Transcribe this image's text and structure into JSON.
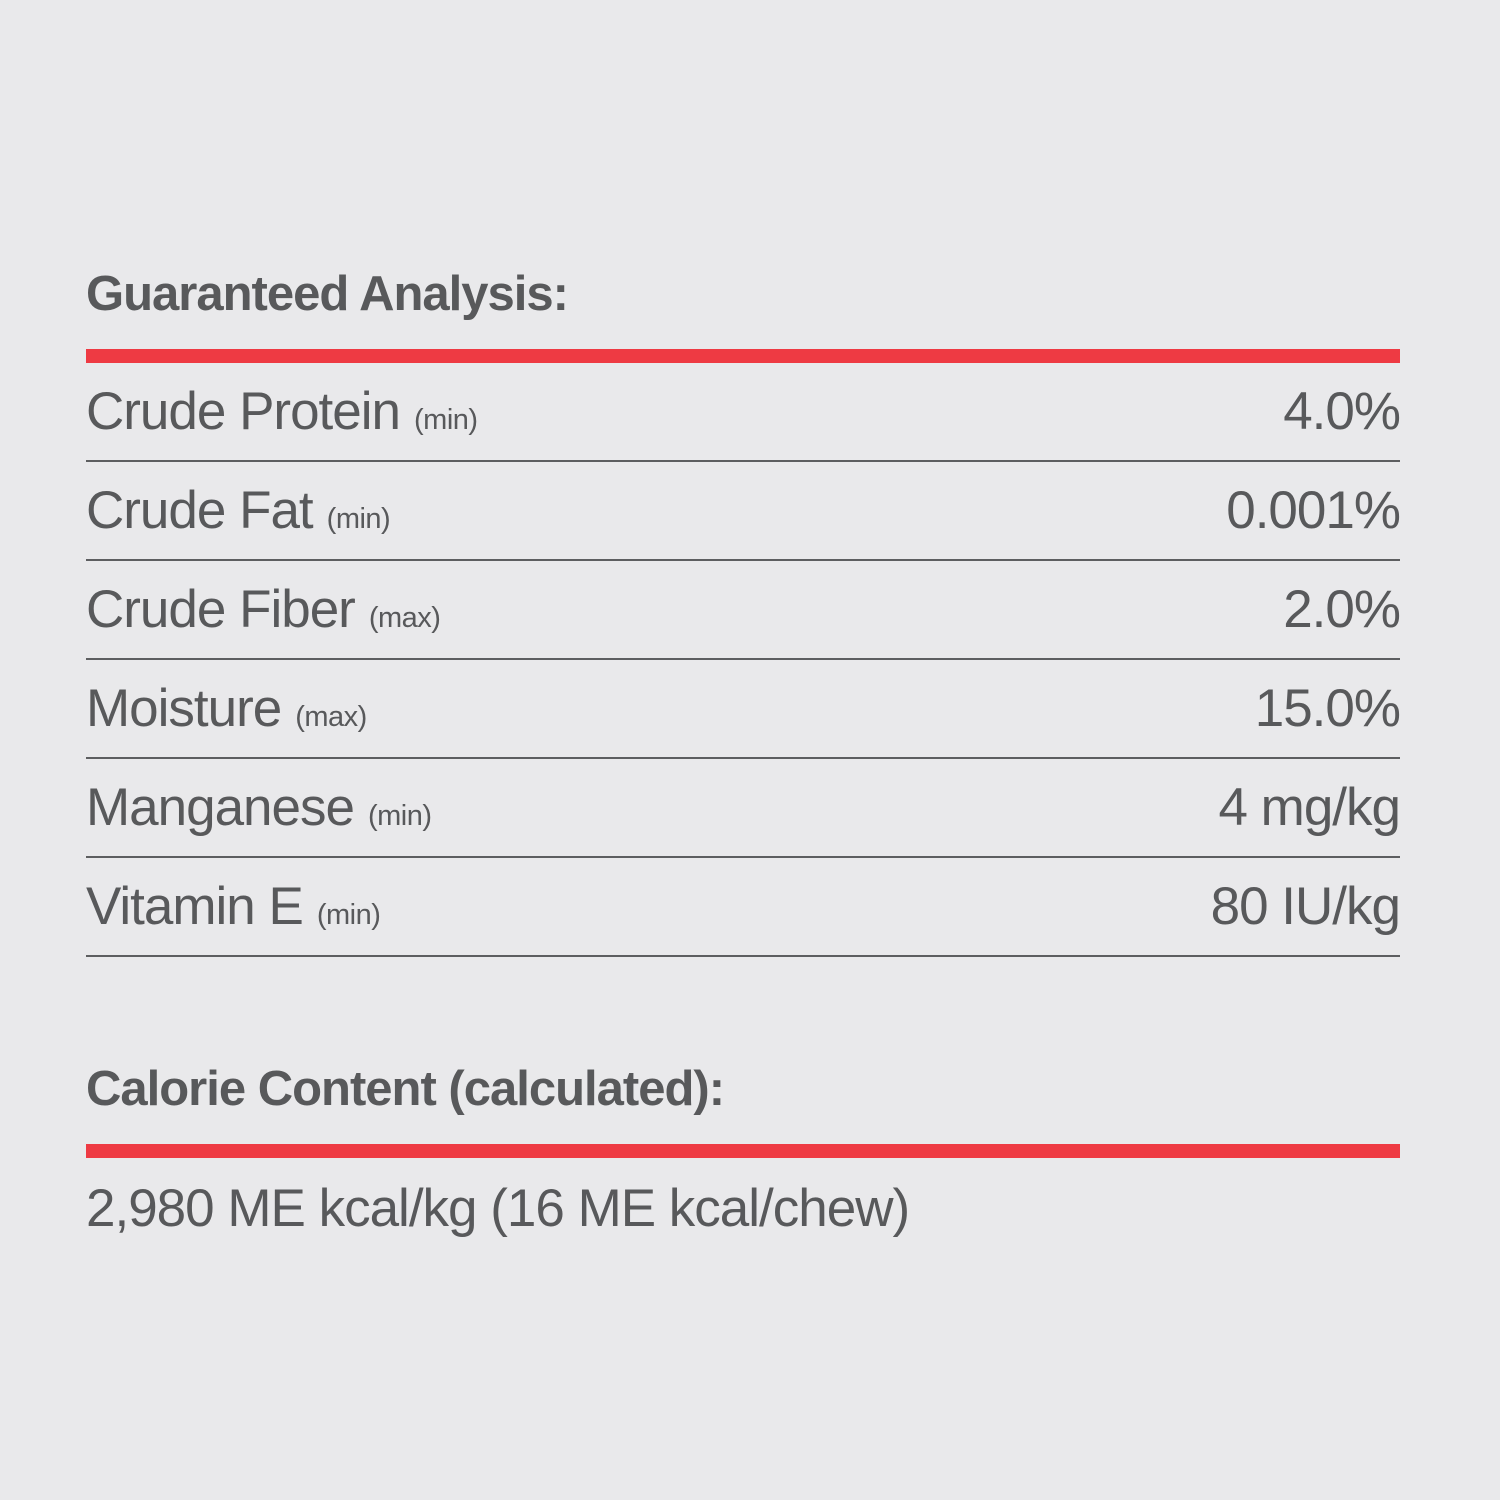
{
  "page": {
    "background_color": "#e9e9eb",
    "text_color": "#58595b",
    "accent_red": "#ee3a43"
  },
  "guaranteed_analysis": {
    "title": "Guaranteed Analysis:",
    "rows": [
      {
        "label": "Crude Protein",
        "qualifier": "(min)",
        "value": "4.0%"
      },
      {
        "label": "Crude Fat",
        "qualifier": "(min)",
        "value": "0.001%"
      },
      {
        "label": "Crude Fiber",
        "qualifier": "(max)",
        "value": "2.0%"
      },
      {
        "label": "Moisture",
        "qualifier": "(max)",
        "value": "15.0%"
      },
      {
        "label": "Manganese",
        "qualifier": "(min)",
        "value": "4 mg/kg"
      },
      {
        "label": "Vitamin E",
        "qualifier": "(min)",
        "value": "80 IU/kg"
      }
    ]
  },
  "calorie_content": {
    "title": "Calorie Content (calculated):",
    "value": "2,980 ME kcal/kg (16 ME kcal/chew)"
  }
}
